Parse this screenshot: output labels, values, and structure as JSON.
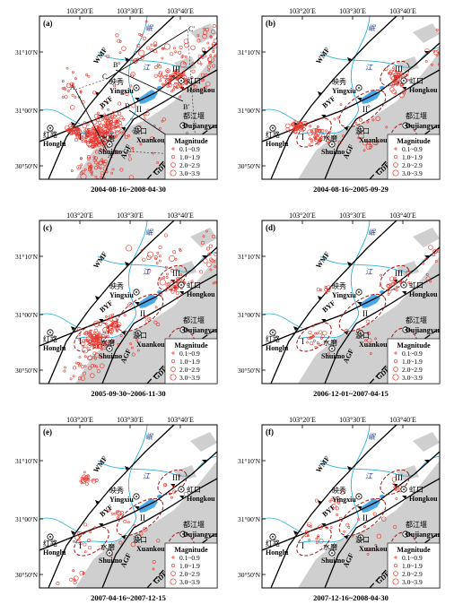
{
  "legend": {
    "title": "Magnitude",
    "items": [
      "0.1~0.9",
      "1.0~1.9",
      "2.0~2.9",
      "3.0~3.9"
    ]
  },
  "axes": {
    "lon_ticks": [
      "103°20′E",
      "103°30′E",
      "103°40′E"
    ],
    "lat_ticks": [
      "31°10′N",
      "31°00′N",
      "30°50′N"
    ]
  },
  "places": {
    "hongkou": {
      "zh": "虹口",
      "en": "Hongkou"
    },
    "yingxiu": {
      "zh": "映秀",
      "en": "Yingxiu"
    },
    "honglu": {
      "zh": "红路",
      "en": "Honglu"
    },
    "shuimo": {
      "zh": "水磨",
      "en": "Shuimo"
    },
    "xuankou": {
      "zh": "漩口",
      "en": "Xuankou"
    },
    "dujiangyan": {
      "zh": "都江堰",
      "en": "Dujiangyan"
    },
    "juyuan": {
      "zh": "聚源",
      "en": "Juyuan"
    },
    "river_min": "岷",
    "river_jiang": "江"
  },
  "faults": [
    "WMF",
    "BYF",
    "AGF",
    "GDF"
  ],
  "zones": [
    "I",
    "II",
    "III",
    "IV"
  ],
  "profile_labels": [
    "A",
    "A′",
    "B",
    "B′",
    "C",
    "C′",
    "D",
    "D′"
  ],
  "panels": [
    {
      "id": "a",
      "label": "(a)",
      "period": "2004-08-16~2008-04-30"
    },
    {
      "id": "b",
      "label": "(b)",
      "period": "2004-08-16~2005-09-29"
    },
    {
      "id": "c",
      "label": "(c)",
      "period": "2005-09-30~2006-11-30"
    },
    {
      "id": "d",
      "label": "(d)",
      "period": "2006-12-01~2007-04-15"
    },
    {
      "id": "e",
      "label": "(e)",
      "period": "2007-04-16~2007-12-15"
    },
    {
      "id": "f",
      "label": "(f)",
      "period": "2007-12-16~2008-04-30"
    }
  ],
  "colors": {
    "quake": "#e8372e",
    "zone": "#9b1c1c",
    "river": "#2ab0d8",
    "reservoir": "#4aa8e8",
    "basin": "#cfcfcf",
    "fault": "#000000"
  }
}
